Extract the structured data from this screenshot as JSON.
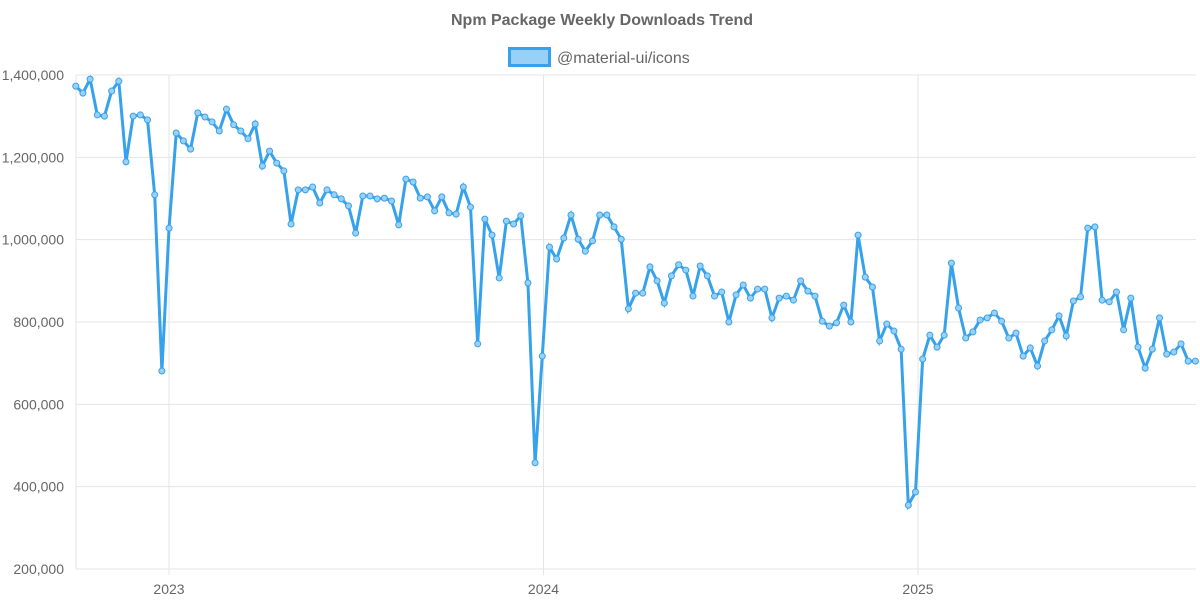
{
  "chart_data": {
    "type": "line",
    "title": "Npm Package Weekly Downloads Trend",
    "xlabel": "",
    "ylabel": "",
    "legend": {
      "placement": "top-center"
    },
    "grid": true,
    "ylim": [
      200000,
      1400000
    ],
    "y_ticks": [
      "1,400,000",
      "1,200,000",
      "1,000,000",
      "800,000",
      "600,000",
      "400,000",
      "200,000"
    ],
    "y_tick_values": [
      1400000,
      1200000,
      1000000,
      800000,
      600000,
      400000,
      200000
    ],
    "x_ticks": [
      "2023",
      "2024",
      "2025"
    ],
    "x_tick_values": [
      2023,
      2024,
      2025
    ],
    "x_start_year": 2022.751,
    "x_step_years": 0.019165,
    "xlim": [
      2022.75,
      2025.74
    ],
    "colors": {
      "line": "#36a2eb",
      "fill": "#9ad0f5",
      "grid": "#e5e5e5"
    },
    "series": [
      {
        "name": "@material-ui/icons",
        "values": [
          1373000,
          1356000,
          1390000,
          1303000,
          1300000,
          1361000,
          1385000,
          1189000,
          1300000,
          1303000,
          1291000,
          1109000,
          681000,
          1028000,
          1259000,
          1240000,
          1220000,
          1308000,
          1298000,
          1286000,
          1264000,
          1317000,
          1279000,
          1264000,
          1245000,
          1281000,
          1179000,
          1215000,
          1186000,
          1167000,
          1038000,
          1121000,
          1121000,
          1128000,
          1089000,
          1121000,
          1109000,
          1099000,
          1082000,
          1016000,
          1106000,
          1106000,
          1099000,
          1101000,
          1094000,
          1036000,
          1147000,
          1140000,
          1101000,
          1104000,
          1070000,
          1104000,
          1065000,
          1062000,
          1128000,
          1079000,
          747000,
          1050000,
          1011000,
          907000,
          1045000,
          1038000,
          1058000,
          895000,
          458000,
          717000,
          982000,
          953000,
          1004000,
          1060000,
          1001000,
          972000,
          997000,
          1060000,
          1060000,
          1031000,
          1001000,
          832000,
          870000,
          870000,
          934000,
          900000,
          846000,
          912000,
          939000,
          926000,
          863000,
          936000,
          912000,
          863000,
          873000,
          800000,
          866000,
          890000,
          858000,
          880000,
          880000,
          810000,
          858000,
          863000,
          853000,
          900000,
          875000,
          863000,
          802000,
          790000,
          798000,
          841000,
          800000,
          1011000,
          909000,
          885000,
          754000,
          795000,
          778000,
          734000,
          355000,
          387000,
          710000,
          768000,
          739000,
          768000,
          943000,
          834000,
          761000,
          776000,
          805000,
          810000,
          822000,
          802000,
          761000,
          773000,
          717000,
          737000,
          693000,
          754000,
          781000,
          815000,
          766000,
          851000,
          861000,
          1028000,
          1031000,
          853000,
          849000,
          873000,
          781000,
          858000,
          739000,
          688000,
          734000,
          810000,
          722000,
          727000,
          747000,
          705000,
          705000
        ]
      }
    ]
  }
}
